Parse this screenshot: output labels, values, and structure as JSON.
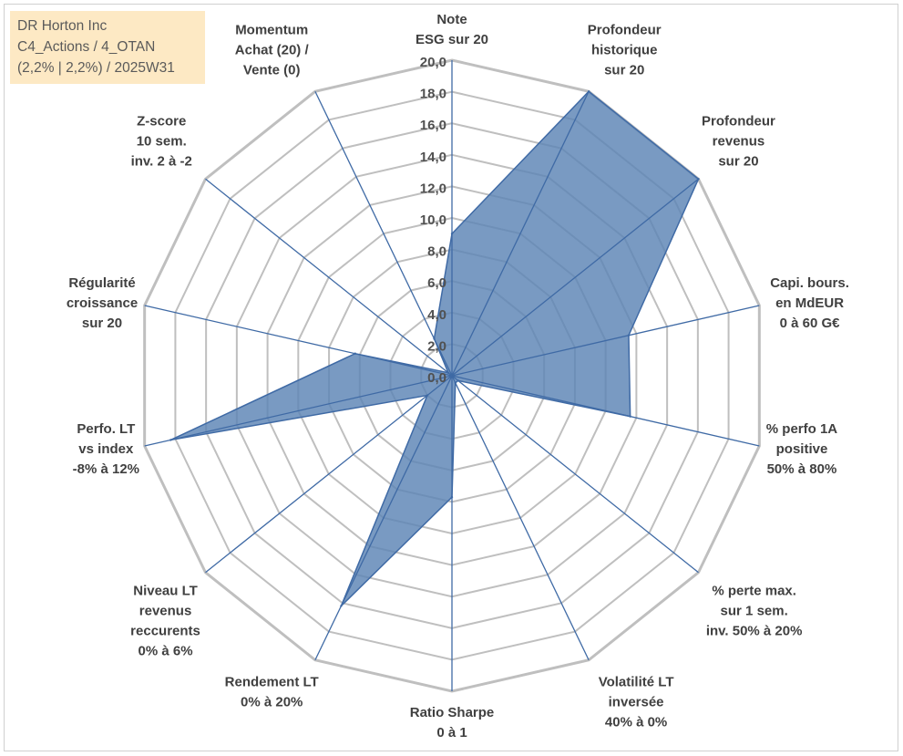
{
  "info_box": {
    "line1": "DR Horton Inc",
    "line2": "C4_Actions / 4_OTAN",
    "line3": "(2,2% | 2,2%) / 2025W31"
  },
  "colors": {
    "fill": "#5b84b5",
    "outline": "#3f6aa5",
    "spokes": "#3f6aa5",
    "grid": "#bfbfbf",
    "info_bg": "#fde9c4"
  },
  "chart_data": {
    "type": "radar",
    "title": "",
    "rlim": [
      0,
      20
    ],
    "rticks": [
      "0,0",
      "2,0",
      "4,0",
      "6,0",
      "8,0",
      "10,0",
      "12,0",
      "14,0",
      "16,0",
      "18,0",
      "20,0"
    ],
    "grid": true,
    "axes": [
      [
        "Note",
        "ESG sur 20"
      ],
      [
        "Profondeur",
        "historique",
        "sur 20"
      ],
      [
        "Profondeur",
        "revenus",
        "sur 20"
      ],
      [
        "Capi. bours.",
        "en MdEUR",
        "0 à 60 G€"
      ],
      [
        "% perfo 1A",
        "positive",
        "50% à 80%"
      ],
      [
        "% perte max.",
        "sur 1 sem.",
        "inv. 50% à 20%"
      ],
      [
        "Volatilité LT",
        "inversée",
        "40% à 0%"
      ],
      [
        "Ratio Sharpe",
        "0 à 1"
      ],
      [
        "Rendement LT",
        "0% à 20%"
      ],
      [
        "Niveau LT",
        "revenus",
        "reccurents",
        "0% à 6%"
      ],
      [
        "Perfo. LT",
        "vs index",
        "-8% à 12%"
      ],
      [
        "Régularité",
        "croissance",
        "sur 20"
      ],
      [
        "Z-score",
        "10 sem.",
        "inv. 2 à -2"
      ],
      [
        "Momentum",
        "Achat (20) /",
        "Vente (0)"
      ]
    ],
    "series": [
      {
        "values": [
          9,
          20,
          20,
          11.5,
          11.6,
          0.5,
          0.5,
          7.7,
          16.2,
          2,
          18.3,
          6.3,
          0.3,
          2.6
        ]
      }
    ]
  }
}
